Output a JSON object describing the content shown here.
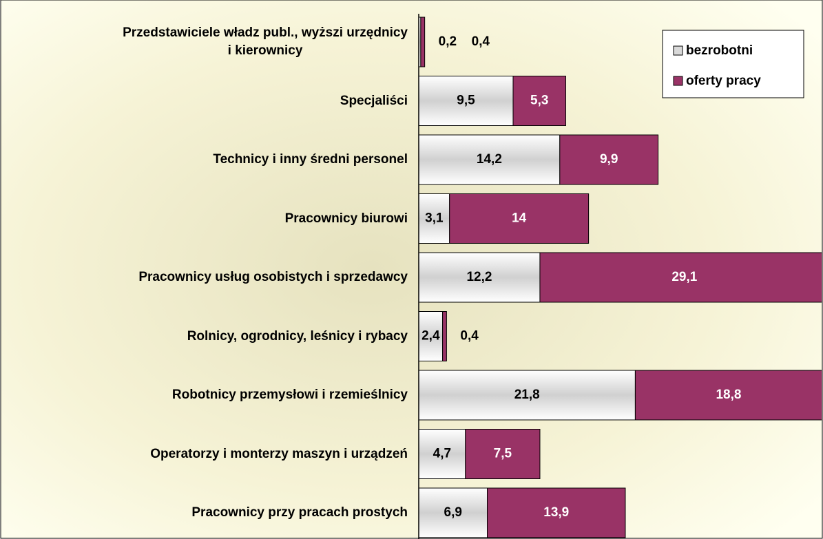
{
  "chart_data": {
    "type": "stacked-barh",
    "categories": [
      "Przedstawiciele władz publ., wyższi urzędnicy\ni kierownicy",
      "Specjaliści",
      "Technicy i inny średni personel",
      "Pracownicy biurowi",
      "Pracownicy usług osobistych i sprzedawcy",
      "Rolnicy, ogrodnicy, leśnicy i rybacy",
      "Robotnicy przemysłowi i rzemieślnicy",
      "Operatorzy i monterzy maszyn i urządzeń",
      "Pracownicy przy pracach prostych"
    ],
    "series": [
      {
        "name": "bezrobotni",
        "color": "#d9d9d9",
        "values": [
          0.2,
          9.5,
          14.2,
          3.1,
          12.2,
          2.4,
          21.8,
          4.7,
          6.9
        ],
        "value_labels": [
          "0,2",
          "9,5",
          "14,2",
          "3,1",
          "12,2",
          "2,4",
          "21,8",
          "4,7",
          "6,9"
        ]
      },
      {
        "name": "oferty pracy",
        "color": "#993366",
        "values": [
          0.4,
          5.3,
          9.9,
          14,
          29.1,
          0.4,
          18.8,
          7.5,
          13.9
        ],
        "value_labels": [
          "0,4",
          "5,3",
          "9,9",
          "14",
          "29,1",
          "0,4",
          "18,8",
          "7,5",
          "13,9"
        ]
      }
    ],
    "xlim": [
      0,
      40.7
    ],
    "legend": "upper right"
  }
}
